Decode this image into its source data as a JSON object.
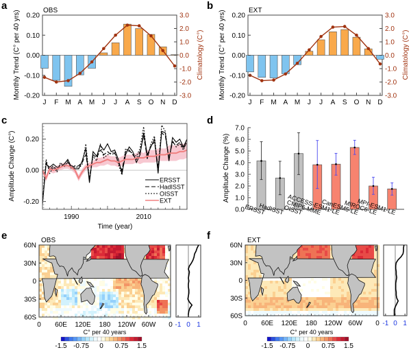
{
  "figure": {
    "panel_letters": [
      "a",
      "b",
      "c",
      "d",
      "e",
      "f"
    ]
  },
  "chart_data": [
    {
      "panel": "a",
      "type": "bar",
      "title": "OBS",
      "categories": [
        "J",
        "F",
        "M",
        "A",
        "M",
        "J",
        "J",
        "A",
        "S",
        "O",
        "N",
        "D"
      ],
      "ylabel": "Monthly Trend (C° per 40 yrs)",
      "ylabel_right": "Climatology (C°)",
      "ylim": [
        -0.2,
        0.2
      ],
      "ylim_right": [
        -3.0,
        3.0
      ],
      "yticks": [
        "0.20",
        "0.10",
        "0.00",
        "-0.10",
        "-0.20"
      ],
      "yticks_right": [
        "3.0",
        "2.0",
        "1.0",
        "0.0",
        "-1.0",
        "-2.0",
        "-3.0"
      ],
      "series": [
        {
          "name": "Monthly Trend",
          "type": "bar",
          "values": [
            -0.065,
            -0.125,
            -0.155,
            -0.098,
            -0.065,
            0.012,
            0.062,
            0.155,
            0.133,
            0.104,
            0.042,
            0.003
          ]
        },
        {
          "name": "Climatology",
          "type": "line",
          "axis": "right",
          "values": [
            -1.65,
            -2.0,
            -1.9,
            -1.35,
            -0.5,
            0.5,
            1.5,
            2.25,
            2.2,
            1.45,
            0.35,
            -0.8
          ]
        }
      ],
      "colors": {
        "negative": "#7fc4ef",
        "positive": "#f9a94b",
        "line": "#a0320f"
      }
    },
    {
      "panel": "b",
      "type": "bar",
      "title": "EXT",
      "categories": [
        "J",
        "F",
        "M",
        "A",
        "M",
        "J",
        "J",
        "A",
        "S",
        "O",
        "N",
        "D"
      ],
      "ylabel": "Monthly Trend (C° per 40 yrs)",
      "ylabel_right": "Climatology (C°)",
      "ylim": [
        -0.2,
        0.2
      ],
      "ylim_right": [
        -3.0,
        3.0
      ],
      "yticks": [
        "0.20",
        "0.10",
        "0.00",
        "-0.10",
        "-0.20"
      ],
      "yticks_right": [
        "3.0",
        "2.0",
        "1.0",
        "0.0",
        "-1.0",
        "-2.0",
        "-3.0"
      ],
      "series": [
        {
          "name": "Monthly Trend",
          "type": "bar",
          "values": [
            -0.083,
            -0.11,
            -0.113,
            -0.092,
            -0.047,
            0.02,
            0.077,
            0.117,
            0.128,
            0.09,
            0.032,
            -0.02
          ]
        },
        {
          "name": "Climatology",
          "type": "line",
          "axis": "right",
          "values": [
            -1.5,
            -1.9,
            -1.85,
            -1.4,
            -0.6,
            0.4,
            1.4,
            2.1,
            2.15,
            1.5,
            0.5,
            -0.65
          ]
        }
      ],
      "colors": {
        "negative": "#7fc4ef",
        "positive": "#f9a94b",
        "line": "#a0320f"
      }
    },
    {
      "panel": "c",
      "type": "line",
      "xlabel": "Time (year)",
      "ylabel": "Amplitude Change (C°)",
      "xlim": [
        1982,
        2022
      ],
      "ylim": [
        -0.25,
        0.3
      ],
      "xticks": [
        "1990",
        "2010"
      ],
      "yticks": [
        "0.20",
        "0.00",
        "-0.20"
      ],
      "legend": [
        "ERSST",
        "HadISST",
        "OISST",
        "EXT"
      ],
      "legend_position": "bottom-right",
      "x": [
        1982,
        1983,
        1984,
        1985,
        1986,
        1987,
        1988,
        1989,
        1990,
        1991,
        1992,
        1993,
        1994,
        1995,
        1996,
        1997,
        1998,
        1999,
        2000,
        2001,
        2002,
        2003,
        2004,
        2005,
        2006,
        2007,
        2008,
        2009,
        2010,
        2011,
        2012,
        2013,
        2014,
        2015,
        2016,
        2017,
        2018,
        2019,
        2020,
        2021,
        2022
      ],
      "series": [
        {
          "name": "ERSST",
          "style": "solid",
          "color": "#000000",
          "values": [
            -0.22,
            0.04,
            0.02,
            0.04,
            0.02,
            0.02,
            0.04,
            0.07,
            0.02,
            0.01,
            0.01,
            0.06,
            0.14,
            -0.08,
            0.12,
            0.09,
            0.16,
            0.13,
            0.17,
            0.12,
            0.13,
            0.07,
            -0.02,
            0.1,
            0.15,
            0.12,
            0.05,
            0.1,
            0.24,
            0.1,
            0.15,
            0.2,
            -0.02,
            0.25,
            0.24,
            0.06,
            0.21,
            0.18,
            0.2,
            0.15,
            0.2
          ]
        },
        {
          "name": "HadISST",
          "style": "dashed",
          "color": "#000000",
          "values": [
            -0.2,
            0.05,
            0.0,
            0.03,
            0.0,
            0.04,
            0.03,
            0.05,
            0.03,
            0.02,
            0.03,
            0.05,
            0.1,
            -0.05,
            0.1,
            0.08,
            0.13,
            0.1,
            0.12,
            0.1,
            0.11,
            0.05,
            0.0,
            0.12,
            0.13,
            0.1,
            0.07,
            0.12,
            0.22,
            0.08,
            0.16,
            0.18,
            0.02,
            0.24,
            0.22,
            0.08,
            0.18,
            0.16,
            0.18,
            0.14,
            0.18
          ]
        },
        {
          "name": "OISST",
          "style": "dotted",
          "color": "#000000",
          "values": [
            -0.21,
            0.07,
            -0.02,
            0.02,
            -0.01,
            0.05,
            0.02,
            0.06,
            0.01,
            0.03,
            0.01,
            0.04,
            0.17,
            -0.06,
            0.09,
            0.06,
            0.17,
            0.08,
            0.1,
            0.11,
            0.12,
            0.04,
            -0.03,
            0.14,
            0.12,
            0.11,
            0.09,
            0.14,
            0.28,
            0.07,
            0.17,
            0.22,
            0.0,
            0.29,
            0.25,
            0.07,
            0.19,
            0.15,
            0.17,
            0.13,
            0.19
          ]
        },
        {
          "name": "EXT",
          "style": "solid",
          "color": "#f08080",
          "values": [
            0.0,
            -0.05,
            0.01,
            0.0,
            0.01,
            0.02,
            0.03,
            0.03,
            0.02,
            0.0,
            -0.05,
            -0.01,
            0.02,
            0.03,
            0.04,
            0.05,
            0.05,
            0.06,
            0.07,
            0.06,
            0.06,
            0.05,
            0.06,
            0.07,
            0.07,
            0.07,
            0.08,
            0.08,
            0.08,
            0.09,
            0.09,
            0.09,
            0.1,
            0.1,
            0.1,
            0.11,
            0.11,
            0.11,
            0.12,
            0.12,
            0.13
          ]
        },
        {
          "name": "EXT spread",
          "type": "band",
          "color": "#f4b6c2",
          "lower": [
            -0.02,
            -0.07,
            -0.01,
            -0.02,
            -0.01,
            0.0,
            0.01,
            0.01,
            0.0,
            -0.02,
            -0.07,
            -0.03,
            0.0,
            0.01,
            0.02,
            0.02,
            0.03,
            0.03,
            0.04,
            0.03,
            0.03,
            0.02,
            0.03,
            0.04,
            0.04,
            0.04,
            0.05,
            0.04,
            0.05,
            0.05,
            0.05,
            0.05,
            0.06,
            0.06,
            0.06,
            0.06,
            0.06,
            0.06,
            0.07,
            0.07,
            0.08
          ],
          "upper": [
            0.02,
            -0.03,
            0.03,
            0.02,
            0.03,
            0.04,
            0.05,
            0.05,
            0.04,
            0.02,
            -0.03,
            0.01,
            0.04,
            0.05,
            0.06,
            0.08,
            0.08,
            0.09,
            0.1,
            0.09,
            0.09,
            0.08,
            0.09,
            0.1,
            0.1,
            0.1,
            0.11,
            0.12,
            0.11,
            0.13,
            0.13,
            0.13,
            0.14,
            0.14,
            0.14,
            0.16,
            0.16,
            0.16,
            0.17,
            0.17,
            0.18
          ]
        }
      ]
    },
    {
      "panel": "d",
      "type": "bar",
      "ylabel": "Amplitude Change (%)",
      "ylim": [
        0.0,
        7.0
      ],
      "yticks": [
        "7.0",
        "6.0",
        "5.0",
        "4.0",
        "3.0",
        "2.0",
        "1.0",
        "0.0"
      ],
      "categories": [
        "ERSST",
        "HadISST",
        "OISST",
        "CMIP6-MME",
        "ACCESS-ESM1-LE",
        "CanESM5-LE",
        "MIROC6-LE",
        "MPI-ESM1-LE"
      ],
      "values": [
        4.15,
        2.68,
        4.78,
        3.82,
        3.87,
        5.3,
        2.0,
        1.75
      ],
      "error_low": [
        2.55,
        1.25,
        2.98,
        1.78,
        2.93,
        4.7,
        1.28,
        1.22
      ],
      "error_high": [
        5.8,
        4.12,
        6.57,
        5.9,
        4.8,
        5.92,
        2.75,
        2.27
      ],
      "bar_groups": [
        "obs",
        "obs",
        "obs",
        "model",
        "model",
        "model",
        "model",
        "model"
      ],
      "colors": {
        "obs": "#c0c0c0",
        "model": "#f7836f",
        "obs_error": "#333333",
        "model_error": "#4a4af0"
      }
    },
    {
      "panel": "e",
      "type": "heatmap",
      "title": "OBS",
      "xticks": [
        "0",
        "60E",
        "120E",
        "180",
        "120W",
        "60W",
        "0"
      ],
      "yticks": [
        "60N",
        "30N",
        "0",
        "30S",
        "60S"
      ],
      "colorbar_label": "C° per 40 years",
      "colorbar_ticks": [
        "-1.5",
        "-0.75",
        "0",
        "0.75",
        "1.5"
      ],
      "colorbar_range": [
        -1.5,
        1.5
      ],
      "profile_xticks": [
        "-1",
        "0",
        "1"
      ],
      "profile_lat": [
        60,
        55,
        50,
        45,
        40,
        35,
        30,
        25,
        20,
        15,
        10,
        5,
        0,
        -5,
        -10,
        -15,
        -20,
        -25,
        -30,
        -35,
        -40,
        -45,
        -50,
        -55,
        -60
      ],
      "profile_values": [
        1.0,
        0.85,
        0.75,
        0.6,
        0.55,
        0.45,
        0.3,
        0.1,
        0.0,
        0.1,
        0.05,
        0.0,
        0.05,
        0.0,
        0.0,
        0.05,
        0.05,
        0.0,
        -0.05,
        0.1,
        0.35,
        0.15,
        0.05,
        0.0,
        0.0
      ]
    },
    {
      "panel": "f",
      "type": "heatmap",
      "title": "EXT",
      "xticks": [
        "0",
        "60E",
        "120E",
        "180",
        "120W",
        "60W",
        "0"
      ],
      "yticks": [
        "60N",
        "30N",
        "0",
        "30S",
        "60S"
      ],
      "colorbar_label": "C° per 40 years",
      "colorbar_ticks": [
        "-1.5",
        "-0.75",
        "0",
        "0.75",
        "1.5"
      ],
      "colorbar_range": [
        -1.5,
        1.5
      ],
      "profile_xticks": [
        "-1",
        "0",
        "1"
      ],
      "profile_lat": [
        60,
        55,
        50,
        45,
        40,
        35,
        30,
        25,
        20,
        15,
        10,
        5,
        0,
        -5,
        -10,
        -15,
        -20,
        -25,
        -30,
        -35,
        -40,
        -45,
        -50,
        -55,
        -60
      ],
      "profile_values": [
        0.9,
        0.85,
        0.85,
        0.8,
        0.6,
        0.3,
        0.1,
        0.05,
        0.05,
        0.1,
        0.1,
        0.15,
        0.1,
        0.05,
        0.05,
        0.05,
        0.1,
        0.1,
        0.15,
        0.3,
        0.15,
        0.0,
        -0.1,
        -0.1,
        -0.1
      ]
    }
  ],
  "colorbar_colors": [
    "#1414c8",
    "#2a4fe0",
    "#3f78ef",
    "#5596f5",
    "#74b4f8",
    "#94d0fb",
    "#b4e6fc",
    "#d2f2fd",
    "#eefafe",
    "#ffffff",
    "#fffde6",
    "#fde9b8",
    "#fbd092",
    "#f8b47a",
    "#f39566",
    "#ee7355",
    "#e84b47",
    "#dc2a37",
    "#c41a30",
    "#a0102a"
  ]
}
